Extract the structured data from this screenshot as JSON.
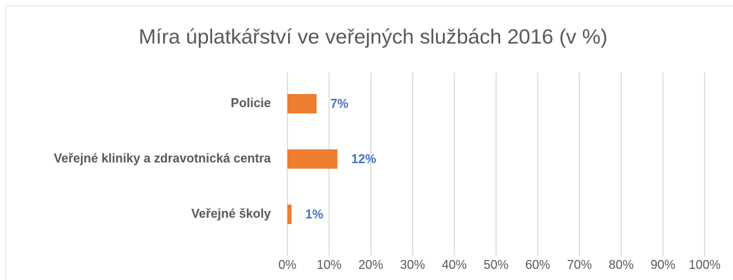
{
  "chart_data": {
    "type": "bar",
    "orientation": "horizontal",
    "title": "Míra úplatkářství ve veřejných službách 2016 (v %)",
    "categories": [
      "Policie",
      "Veřejné kliniky a zdravotnická centra",
      "Veřejné školy"
    ],
    "values": [
      7,
      12,
      1
    ],
    "value_labels": [
      "7%",
      "12%",
      "1%"
    ],
    "color": "#ed7d31",
    "label_color": "#4472c4",
    "xlim": [
      0,
      100
    ],
    "xticks": [
      {
        "value": 0,
        "label": "0%"
      },
      {
        "value": 10,
        "label": "10%"
      },
      {
        "value": 20,
        "label": "20%"
      },
      {
        "value": 30,
        "label": "30%"
      },
      {
        "value": 40,
        "label": "40%"
      },
      {
        "value": 50,
        "label": "50%"
      },
      {
        "value": 60,
        "label": "60%"
      },
      {
        "value": 70,
        "label": "70%"
      },
      {
        "value": 80,
        "label": "80%"
      },
      {
        "value": 90,
        "label": "90%"
      },
      {
        "value": 100,
        "label": "100%"
      }
    ],
    "grid": true
  }
}
